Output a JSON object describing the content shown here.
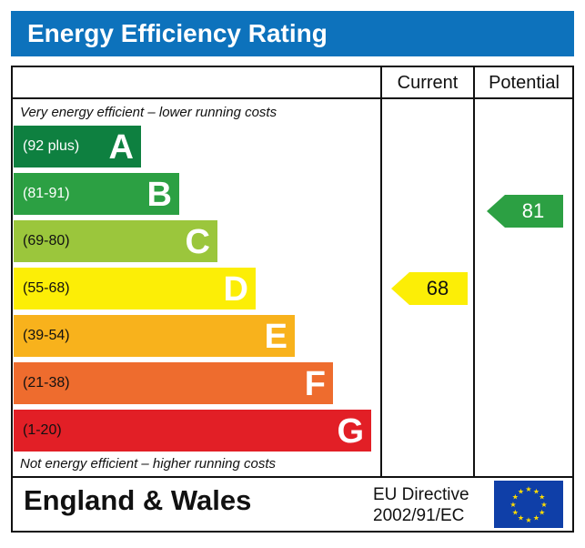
{
  "title": "Energy Efficiency Rating",
  "columns": {
    "current": "Current",
    "potential": "Potential"
  },
  "notes": {
    "top": "Very energy efficient – lower running costs",
    "bottom": "Not energy efficient – higher running costs"
  },
  "footer": {
    "region": "England & Wales",
    "directive_line1": "EU Directive",
    "directive_line2": "2002/91/EC"
  },
  "chart_data": {
    "type": "bar",
    "categories": [
      "A",
      "B",
      "C",
      "D",
      "E",
      "F",
      "G"
    ],
    "ranges": [
      "(92 plus)",
      "(81-91)",
      "(69-80)",
      "(55-68)",
      "(39-54)",
      "(21-38)",
      "(1-20)"
    ],
    "colors": [
      "#0e8040",
      "#2ca043",
      "#9bc63c",
      "#fcee06",
      "#f8b21c",
      "#ee6c2e",
      "#e21f26"
    ],
    "current": {
      "value": "68",
      "band": "D",
      "color": "#fcee06"
    },
    "potential": {
      "value": "81",
      "band": "B",
      "color": "#2ca043"
    }
  }
}
